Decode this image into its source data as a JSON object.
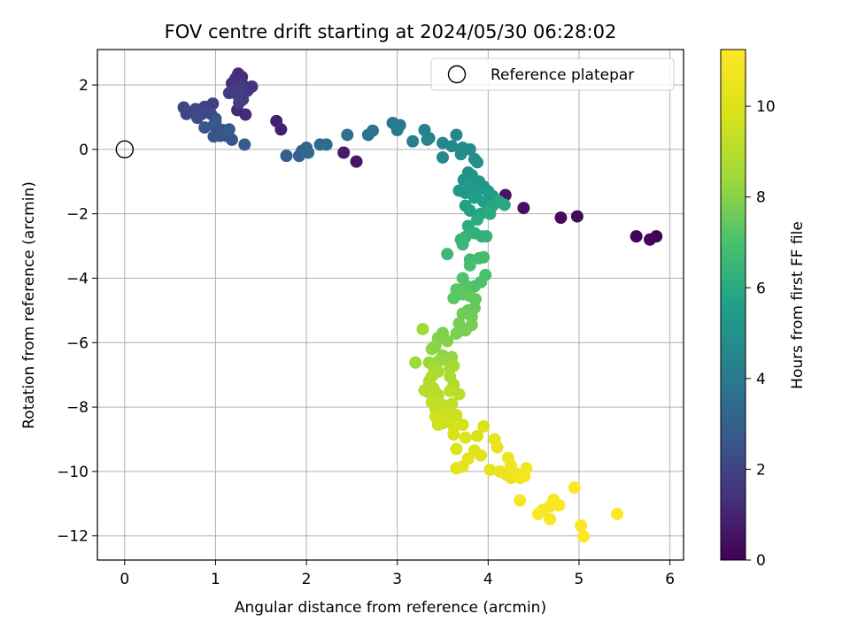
{
  "chart_data": {
    "type": "scatter",
    "title": "FOV centre drift starting at 2024/05/30 06:28:02",
    "xlabel": "Angular distance from reference (arcmin)",
    "ylabel": "Rotation from reference (arcmin)",
    "xlim": [
      -0.3,
      6.15
    ],
    "ylim": [
      -12.75,
      3.1
    ],
    "xticks": [
      0,
      1,
      2,
      3,
      4,
      5,
      6
    ],
    "xtick_labels": [
      "0",
      "1",
      "2",
      "3",
      "4",
      "5",
      "6"
    ],
    "yticks": [
      2,
      0,
      -2,
      -4,
      -6,
      -8,
      -10,
      -12
    ],
    "ytick_labels": [
      "2",
      "0",
      "−2",
      "−4",
      "−6",
      "−8",
      "−10",
      "−12"
    ],
    "grid": true,
    "legend": {
      "position": "upper right",
      "label": "Reference platepar"
    },
    "reference_point": {
      "x": 0,
      "y": 0
    },
    "colorbar": {
      "label": "Hours from first FF file",
      "min": 0,
      "max": 11.25,
      "ticks": [
        0,
        2,
        4,
        6,
        8,
        10
      ],
      "tick_labels": [
        "0",
        "2",
        "4",
        "6",
        "8",
        "10"
      ],
      "colormap": "viridis"
    },
    "points": [
      [
        5.85,
        -2.7,
        0.05
      ],
      [
        5.78,
        -2.8,
        0.1
      ],
      [
        5.63,
        -2.7,
        0.15
      ],
      [
        4.98,
        -2.08,
        0.25
      ],
      [
        4.8,
        -2.12,
        0.35
      ],
      [
        4.39,
        -1.82,
        0.45
      ],
      [
        4.19,
        -1.42,
        0.55
      ],
      [
        2.55,
        -0.38,
        0.65
      ],
      [
        2.41,
        -0.1,
        0.75
      ],
      [
        1.72,
        0.62,
        0.85
      ],
      [
        1.67,
        0.88,
        0.95
      ],
      [
        1.28,
        1.62,
        1.05
      ],
      [
        1.24,
        1.22,
        1.15
      ],
      [
        1.33,
        1.08,
        1.2
      ],
      [
        1.25,
        2.35,
        1.25
      ],
      [
        1.29,
        2.25,
        1.3
      ],
      [
        1.22,
        2.2,
        1.35
      ],
      [
        1.18,
        2.05,
        1.4
      ],
      [
        1.3,
        2.0,
        1.45
      ],
      [
        1.4,
        1.95,
        1.5
      ],
      [
        1.35,
        1.82,
        1.55
      ],
      [
        1.15,
        1.75,
        1.6
      ],
      [
        1.24,
        1.7,
        1.65
      ],
      [
        1.3,
        1.55,
        1.7
      ],
      [
        1.2,
        1.85,
        1.75
      ],
      [
        1.28,
        1.92,
        1.8
      ],
      [
        1.26,
        1.45,
        1.85
      ],
      [
        0.97,
        1.42,
        1.9
      ],
      [
        0.88,
        1.32,
        1.95
      ],
      [
        0.78,
        1.25,
        2.0
      ],
      [
        0.65,
        1.3,
        2.05
      ],
      [
        0.68,
        1.1,
        2.1
      ],
      [
        0.85,
        1.1,
        2.15
      ],
      [
        0.8,
        0.98,
        2.2
      ],
      [
        0.95,
        1.1,
        2.25
      ],
      [
        0.98,
        0.75,
        2.3
      ],
      [
        1.0,
        0.95,
        2.35
      ],
      [
        1.08,
        0.6,
        2.4
      ],
      [
        1.12,
        0.42,
        2.45
      ],
      [
        1.18,
        0.3,
        2.5
      ],
      [
        1.05,
        0.42,
        2.55
      ],
      [
        0.98,
        0.4,
        2.6
      ],
      [
        0.88,
        0.68,
        2.65
      ],
      [
        1.0,
        0.85,
        2.7
      ],
      [
        1.15,
        0.62,
        2.75
      ],
      [
        1.32,
        0.15,
        2.8
      ],
      [
        1.78,
        -0.2,
        2.9
      ],
      [
        1.92,
        -0.2,
        3.0
      ],
      [
        1.95,
        -0.05,
        3.1
      ],
      [
        2.0,
        0.05,
        3.2
      ],
      [
        2.02,
        -0.1,
        3.3
      ],
      [
        2.15,
        0.15,
        3.4
      ],
      [
        2.22,
        0.15,
        3.5
      ],
      [
        2.45,
        0.45,
        3.6
      ],
      [
        2.68,
        0.45,
        3.7
      ],
      [
        2.73,
        0.58,
        3.8
      ],
      [
        2.95,
        0.82,
        3.9
      ],
      [
        3.03,
        0.75,
        4.0
      ],
      [
        3.0,
        0.6,
        4.1
      ],
      [
        3.17,
        0.25,
        4.2
      ],
      [
        3.3,
        0.6,
        4.3
      ],
      [
        3.35,
        0.35,
        4.35
      ],
      [
        3.33,
        0.3,
        4.4
      ],
      [
        3.5,
        0.2,
        4.5
      ],
      [
        3.65,
        0.45,
        4.55
      ],
      [
        3.5,
        -0.25,
        4.6
      ],
      [
        3.6,
        0.1,
        4.65
      ],
      [
        3.72,
        0.05,
        4.7
      ],
      [
        3.8,
        0.0,
        4.75
      ],
      [
        3.7,
        -0.15,
        4.8
      ],
      [
        3.85,
        -0.3,
        4.85
      ],
      [
        3.88,
        -0.4,
        4.9
      ],
      [
        3.78,
        -0.72,
        4.95
      ],
      [
        3.82,
        -0.8,
        5.0
      ],
      [
        3.73,
        -0.95,
        5.05
      ],
      [
        3.85,
        -0.95,
        5.1
      ],
      [
        3.9,
        -1.0,
        5.15
      ],
      [
        3.95,
        -1.15,
        5.2
      ],
      [
        3.68,
        -1.28,
        5.25
      ],
      [
        3.75,
        -1.35,
        5.3
      ],
      [
        3.8,
        -1.1,
        5.35
      ],
      [
        3.88,
        -1.3,
        5.4
      ],
      [
        4.0,
        -1.3,
        5.45
      ],
      [
        4.05,
        -1.45,
        5.5
      ],
      [
        3.95,
        -1.62,
        5.55
      ],
      [
        3.85,
        -1.5,
        5.6
      ],
      [
        3.75,
        -1.75,
        5.65
      ],
      [
        3.8,
        -1.9,
        5.7
      ],
      [
        4.0,
        -1.9,
        5.75
      ],
      [
        3.92,
        -2.0,
        5.8
      ],
      [
        4.05,
        -1.75,
        5.85
      ],
      [
        4.12,
        -1.62,
        5.9
      ],
      [
        4.18,
        -1.72,
        5.95
      ],
      [
        4.02,
        -2.0,
        6.0
      ],
      [
        3.88,
        -2.18,
        6.05
      ],
      [
        3.78,
        -2.38,
        6.1
      ],
      [
        3.85,
        -2.6,
        6.2
      ],
      [
        3.93,
        -2.7,
        6.3
      ],
      [
        3.98,
        -2.7,
        6.35
      ],
      [
        3.75,
        -2.72,
        6.4
      ],
      [
        3.7,
        -2.8,
        6.5
      ],
      [
        3.72,
        -2.95,
        6.55
      ],
      [
        3.55,
        -3.25,
        6.65
      ],
      [
        3.8,
        -3.42,
        6.75
      ],
      [
        3.9,
        -3.38,
        6.8
      ],
      [
        3.95,
        -3.35,
        6.85
      ],
      [
        3.8,
        -3.6,
        6.9
      ],
      [
        3.97,
        -3.9,
        7.0
      ],
      [
        3.92,
        -4.12,
        7.05
      ],
      [
        3.85,
        -4.25,
        7.1
      ],
      [
        3.72,
        -4.0,
        7.15
      ],
      [
        3.75,
        -4.22,
        7.2
      ],
      [
        3.65,
        -4.35,
        7.25
      ],
      [
        3.62,
        -4.62,
        7.3
      ],
      [
        3.72,
        -4.5,
        7.35
      ],
      [
        3.8,
        -4.55,
        7.4
      ],
      [
        3.86,
        -4.65,
        7.45
      ],
      [
        3.85,
        -4.92,
        7.5
      ],
      [
        3.78,
        -5.0,
        7.55
      ],
      [
        3.72,
        -5.1,
        7.6
      ],
      [
        3.82,
        -5.2,
        7.65
      ],
      [
        3.68,
        -5.4,
        7.7
      ],
      [
        3.82,
        -5.45,
        7.75
      ],
      [
        3.75,
        -5.62,
        7.8
      ],
      [
        3.65,
        -5.72,
        7.85
      ],
      [
        3.5,
        -5.7,
        7.9
      ],
      [
        3.45,
        -5.85,
        7.95
      ],
      [
        3.55,
        -5.95,
        8.0
      ],
      [
        3.42,
        -6.1,
        8.05
      ],
      [
        3.38,
        -6.2,
        8.1
      ],
      [
        3.5,
        -6.4,
        8.15
      ],
      [
        3.6,
        -6.45,
        8.2
      ],
      [
        3.55,
        -6.55,
        8.25
      ],
      [
        3.45,
        -6.58,
        8.3
      ],
      [
        3.35,
        -6.62,
        8.35
      ],
      [
        3.2,
        -6.62,
        8.4
      ],
      [
        3.28,
        -5.58,
        8.45
      ],
      [
        3.4,
        -6.75,
        8.5
      ],
      [
        3.62,
        -6.72,
        8.55
      ],
      [
        3.58,
        -6.8,
        8.6
      ],
      [
        3.45,
        -6.9,
        8.65
      ],
      [
        3.58,
        -7.05,
        8.7
      ],
      [
        3.62,
        -7.3,
        8.75
      ],
      [
        3.38,
        -7.05,
        8.8
      ],
      [
        3.35,
        -7.2,
        8.85
      ],
      [
        3.4,
        -7.42,
        8.9
      ],
      [
        3.3,
        -7.48,
        8.95
      ],
      [
        3.35,
        -7.55,
        9.0
      ],
      [
        3.45,
        -7.62,
        9.05
      ],
      [
        3.58,
        -7.5,
        9.1
      ],
      [
        3.68,
        -7.6,
        9.15
      ],
      [
        3.6,
        -7.9,
        9.2
      ],
      [
        3.48,
        -7.9,
        9.25
      ],
      [
        3.38,
        -7.85,
        9.3
      ],
      [
        3.42,
        -8.05,
        9.35
      ],
      [
        3.52,
        -8.15,
        9.4
      ],
      [
        3.58,
        -8.2,
        9.45
      ],
      [
        3.65,
        -8.25,
        9.5
      ],
      [
        3.55,
        -8.4,
        9.55
      ],
      [
        3.5,
        -8.5,
        9.6
      ],
      [
        3.45,
        -8.55,
        9.65
      ],
      [
        3.42,
        -8.3,
        9.7
      ],
      [
        3.62,
        -8.62,
        9.75
      ],
      [
        3.72,
        -8.55,
        9.8
      ],
      [
        3.62,
        -8.85,
        9.85
      ],
      [
        3.88,
        -8.9,
        9.9
      ],
      [
        3.95,
        -8.6,
        9.95
      ],
      [
        3.75,
        -8.95,
        10.0
      ],
      [
        3.65,
        -9.3,
        10.05
      ],
      [
        3.85,
        -9.35,
        10.1
      ],
      [
        3.92,
        -9.5,
        10.15
      ],
      [
        3.78,
        -9.6,
        10.2
      ],
      [
        3.72,
        -9.85,
        10.25
      ],
      [
        3.65,
        -9.9,
        10.3
      ],
      [
        4.02,
        -9.95,
        10.35
      ],
      [
        4.07,
        -9.0,
        10.4
      ],
      [
        4.1,
        -9.25,
        10.45
      ],
      [
        4.13,
        -10.0,
        10.5
      ],
      [
        4.2,
        -10.1,
        10.55
      ],
      [
        4.25,
        -10.2,
        10.6
      ],
      [
        4.22,
        -9.58,
        10.65
      ],
      [
        4.25,
        -9.82,
        10.7
      ],
      [
        4.3,
        -10.05,
        10.75
      ],
      [
        4.35,
        -10.2,
        10.8
      ],
      [
        4.42,
        -9.9,
        10.85
      ],
      [
        4.4,
        -10.15,
        10.9
      ],
      [
        4.35,
        -10.9,
        10.95
      ],
      [
        4.6,
        -11.2,
        11.0
      ],
      [
        4.68,
        -11.08,
        11.05
      ],
      [
        4.72,
        -10.88,
        11.1
      ],
      [
        4.78,
        -11.05,
        11.12
      ],
      [
        4.68,
        -11.48,
        11.15
      ],
      [
        4.55,
        -11.32,
        11.18
      ],
      [
        4.95,
        -10.5,
        11.2
      ],
      [
        5.02,
        -11.68,
        11.22
      ],
      [
        5.05,
        -12.02,
        11.24
      ],
      [
        5.42,
        -11.32,
        11.25
      ]
    ]
  }
}
